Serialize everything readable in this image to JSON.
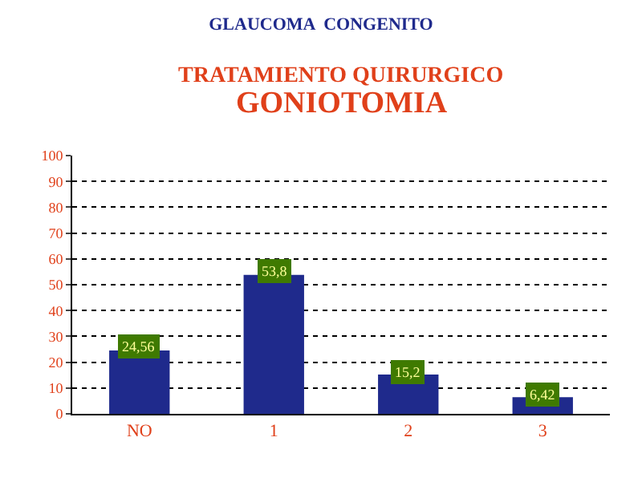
{
  "chart_data": {
    "type": "bar",
    "title": "GLAUCOMA  CONGENITO",
    "subtitle": "TRATAMIENTO QUIRURGICO",
    "annotations": [
      "GONIOTOMIA"
    ],
    "categories": [
      "NO",
      "1",
      "2",
      "3"
    ],
    "values": [
      24.56,
      53.8,
      15.2,
      6.42
    ],
    "value_labels": [
      "24,56",
      "53,8",
      "15,2",
      "6,42"
    ],
    "color": "#1f2a8c",
    "ylim": [
      0,
      100
    ],
    "yticks": [
      0,
      10,
      20,
      30,
      40,
      50,
      60,
      70,
      80,
      90,
      100
    ],
    "grid": "y",
    "legend": false
  }
}
